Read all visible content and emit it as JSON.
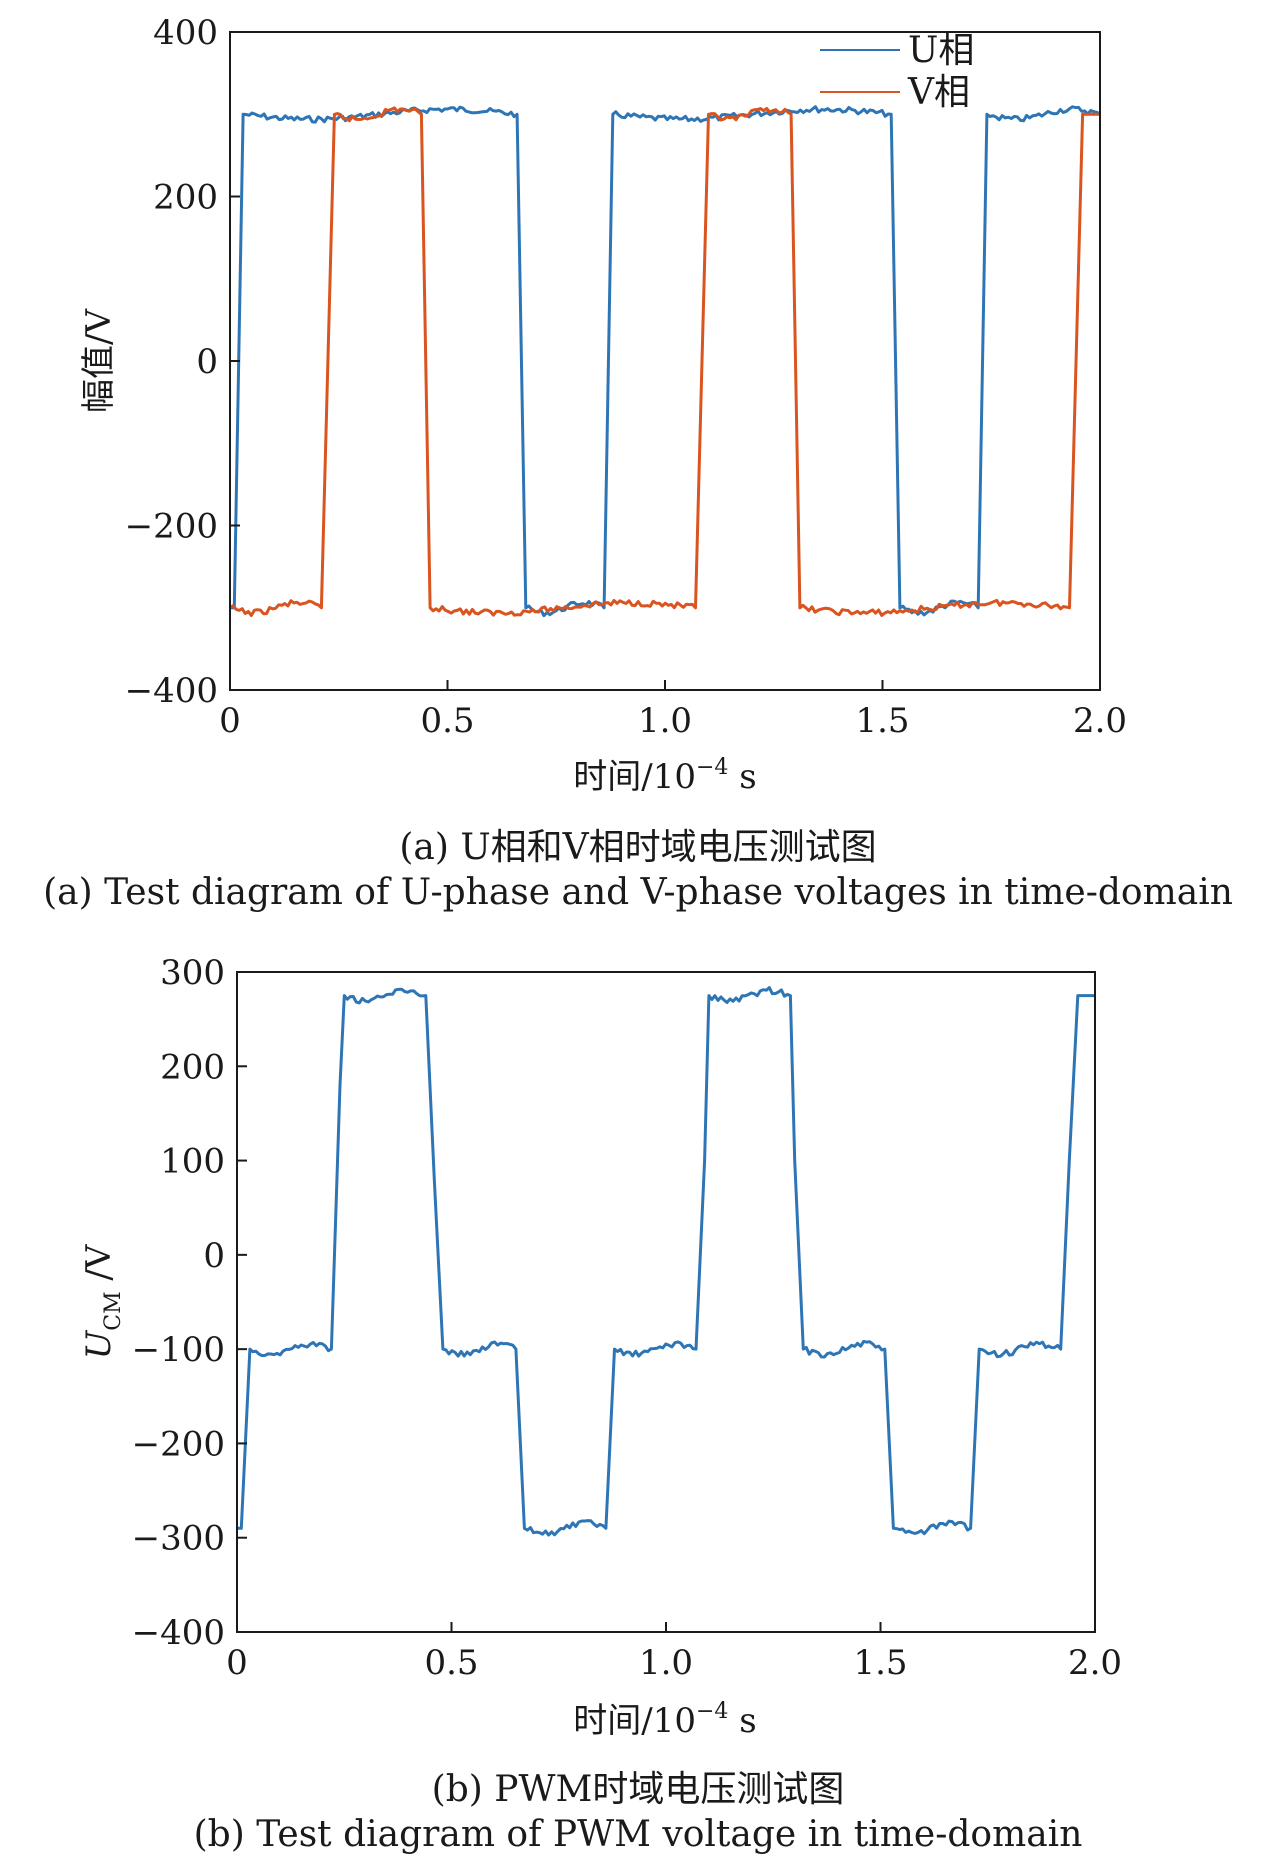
{
  "chart_data": [
    {
      "type": "line",
      "panel": "a",
      "xlabel": "时间/10⁻⁴ s",
      "ylabel": "幅值/V",
      "xlim": [
        0,
        2.0
      ],
      "ylim": [
        -400,
        400
      ],
      "xticks": [
        "0",
        "0.5",
        "1.0",
        "1.5",
        "2.0"
      ],
      "yticks": [
        "400",
        "200",
        "0",
        "−200",
        "−400"
      ],
      "legend_position": "top-right",
      "grid": false,
      "series": [
        {
          "name": "U相",
          "color": "#2e75b6",
          "points": [
            [
              0,
              -300
            ],
            [
              0.01,
              -300
            ],
            [
              0.03,
              300
            ],
            [
              0.66,
              300
            ],
            [
              0.68,
              -300
            ],
            [
              0.86,
              -300
            ],
            [
              0.88,
              300
            ],
            [
              1.52,
              300
            ],
            [
              1.54,
              -300
            ],
            [
              1.72,
              -300
            ],
            [
              1.74,
              300
            ],
            [
              2.0,
              300
            ]
          ]
        },
        {
          "name": "V相",
          "color": "#d9541e",
          "points": [
            [
              0,
              -300
            ],
            [
              0.21,
              -300
            ],
            [
              0.24,
              300
            ],
            [
              0.44,
              300
            ],
            [
              0.46,
              -300
            ],
            [
              1.07,
              -300
            ],
            [
              1.1,
              300
            ],
            [
              1.29,
              300
            ],
            [
              1.31,
              -300
            ],
            [
              1.93,
              -300
            ],
            [
              1.96,
              300
            ],
            [
              2.0,
              300
            ]
          ]
        }
      ]
    },
    {
      "type": "line",
      "panel": "b",
      "xlabel": "时间/10⁻⁴ s",
      "ylabel": "U_CM /V",
      "xlim": [
        0,
        2.0
      ],
      "ylim": [
        -400,
        300
      ],
      "xticks": [
        "0",
        "0.5",
        "1.0",
        "1.5",
        "2.0"
      ],
      "yticks": [
        "300",
        "200",
        "100",
        "0",
        "−100",
        "−200",
        "−300",
        "−400"
      ],
      "grid": false,
      "series": [
        {
          "color": "#2e75b6",
          "points": [
            [
              0,
              -290
            ],
            [
              0.01,
              -290
            ],
            [
              0.03,
              -100
            ],
            [
              0.22,
              -100
            ],
            [
              0.24,
              180
            ],
            [
              0.25,
              275
            ],
            [
              0.44,
              275
            ],
            [
              0.46,
              80
            ],
            [
              0.48,
              -100
            ],
            [
              0.65,
              -100
            ],
            [
              0.67,
              -290
            ],
            [
              0.86,
              -290
            ],
            [
              0.88,
              -100
            ],
            [
              1.07,
              -100
            ],
            [
              1.09,
              100
            ],
            [
              1.1,
              275
            ],
            [
              1.29,
              275
            ],
            [
              1.3,
              100
            ],
            [
              1.32,
              -100
            ],
            [
              1.51,
              -100
            ],
            [
              1.53,
              -290
            ],
            [
              1.71,
              -290
            ],
            [
              1.73,
              -100
            ],
            [
              1.92,
              -100
            ],
            [
              1.94,
              100
            ],
            [
              1.96,
              275
            ],
            [
              2.0,
              275
            ]
          ]
        }
      ]
    }
  ],
  "captions": {
    "a_cn": "(a) U相和V相时域电压测试图",
    "a_en": "(a) Test diagram of U-phase and V-phase voltages in time-domain",
    "b_cn": "(b) PWM时域电压测试图",
    "b_en": "(b) Test diagram of PWM voltage in time-domain"
  },
  "labels": {
    "a_xlabel_main": "时间/10",
    "a_xlabel_exp": "−4",
    "a_xlabel_unit": " s",
    "a_ylabel": "幅值/V",
    "b_xlabel_main": "时间/10",
    "b_xlabel_exp": "−4",
    "b_xlabel_unit": " s",
    "b_ylabel_main": "U",
    "b_ylabel_sub": "CM",
    "b_ylabel_unit": " /V",
    "legend_u": "U相",
    "legend_v": "V相"
  }
}
